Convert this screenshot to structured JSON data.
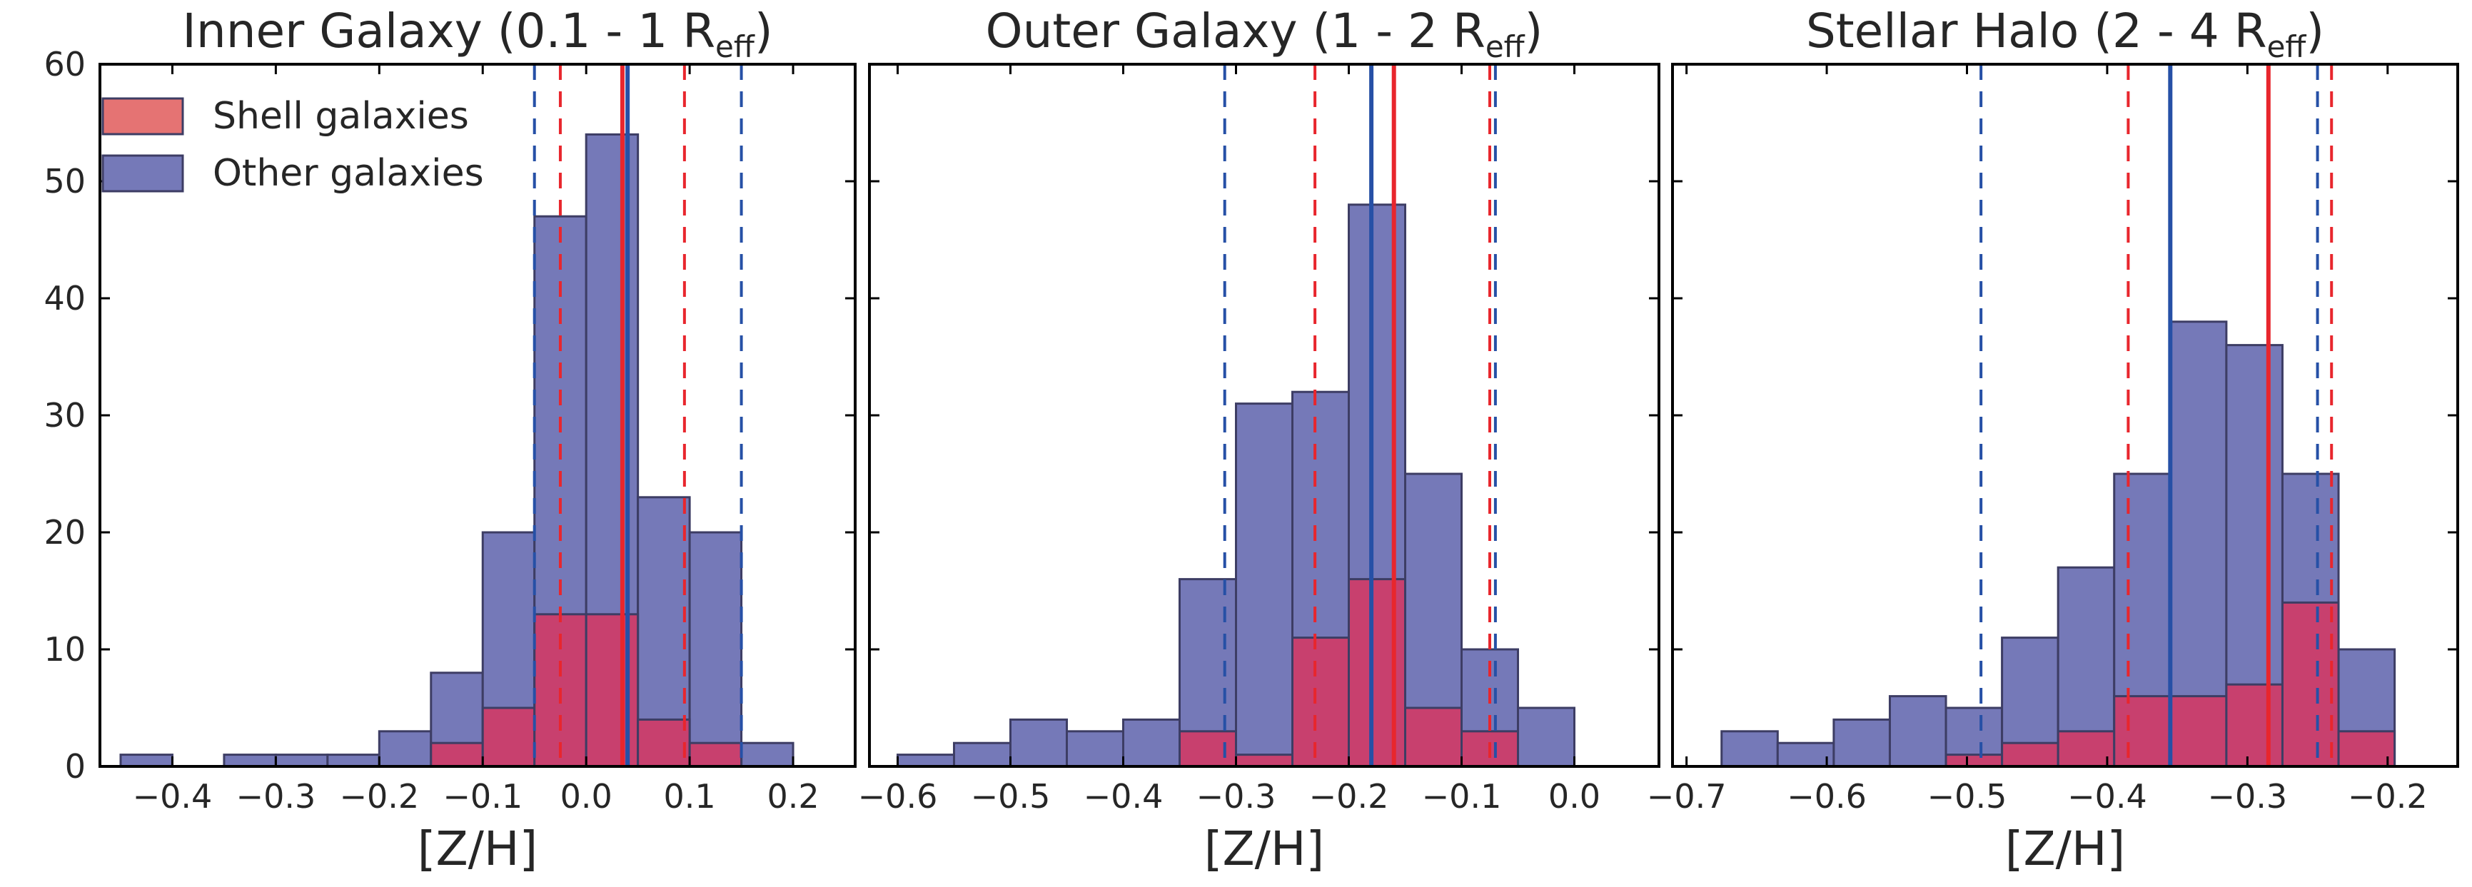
{
  "chart_data": [
    {
      "type": "histogram",
      "title_main": "Inner Galaxy (0.1 - 1 R",
      "title_sub": "eff",
      "title_end": ")",
      "xlabel": "[Z/H]",
      "ylabel": "",
      "xlim": [
        -0.47,
        0.26
      ],
      "ylim": [
        0,
        60
      ],
      "xticks": [
        -0.4,
        -0.3,
        -0.2,
        -0.1,
        0.0,
        0.1,
        0.2
      ],
      "xtick_labels": [
        "−0.4",
        "−0.3",
        "−0.2",
        "−0.1",
        "0.0",
        "0.1",
        "0.2"
      ],
      "yticks": [
        0,
        10,
        20,
        30,
        40,
        50,
        60
      ],
      "ytick_labels": [
        "0",
        "10",
        "20",
        "30",
        "40",
        "50",
        "60"
      ],
      "bin_edges": [
        -0.45,
        -0.4,
        -0.35,
        -0.3,
        -0.25,
        -0.2,
        -0.15,
        -0.1,
        -0.05,
        0.0,
        0.05,
        0.1,
        0.15,
        0.2,
        0.25
      ],
      "series": [
        {
          "name": "Other galaxies",
          "counts": [
            1,
            0,
            1,
            1,
            1,
            3,
            8,
            20,
            47,
            54,
            23,
            20,
            2,
            0
          ]
        },
        {
          "name": "Shell galaxies",
          "counts": [
            0,
            0,
            0,
            0,
            0,
            0,
            2,
            5,
            13,
            13,
            4,
            2,
            0,
            0
          ]
        }
      ],
      "lines": {
        "other": {
          "median": 0.04,
          "low": -0.05,
          "high": 0.15
        },
        "shell": {
          "median": 0.035,
          "low": -0.025,
          "high": 0.095
        }
      }
    },
    {
      "type": "histogram",
      "title_main": "Outer Galaxy (1 - 2 R",
      "title_sub": "eff",
      "title_end": ")",
      "xlabel": "[Z/H]",
      "ylabel": "",
      "xlim": [
        -0.625,
        0.075
      ],
      "ylim": [
        0,
        60
      ],
      "xticks": [
        -0.6,
        -0.5,
        -0.4,
        -0.3,
        -0.2,
        -0.1,
        0.0
      ],
      "xtick_labels": [
        "−0.6",
        "−0.5",
        "−0.4",
        "−0.3",
        "−0.2",
        "−0.1",
        "0.0"
      ],
      "yticks": [
        0,
        10,
        20,
        30,
        40,
        50,
        60
      ],
      "ytick_labels": [
        "",
        "",
        "",
        "",
        "",
        "",
        ""
      ],
      "bin_edges": [
        -0.6,
        -0.55,
        -0.5,
        -0.45,
        -0.4,
        -0.35,
        -0.3,
        -0.25,
        -0.2,
        -0.15,
        -0.1,
        -0.05,
        0.0,
        0.05
      ],
      "series": [
        {
          "name": "Other galaxies",
          "counts": [
            1,
            2,
            4,
            3,
            4,
            16,
            31,
            32,
            48,
            25,
            10,
            5,
            0
          ]
        },
        {
          "name": "Shell galaxies",
          "counts": [
            0,
            0,
            0,
            0,
            0,
            3,
            1,
            11,
            16,
            5,
            3,
            0,
            0
          ]
        }
      ],
      "lines": {
        "other": {
          "median": -0.18,
          "low": -0.31,
          "high": -0.07
        },
        "shell": {
          "median": -0.16,
          "low": -0.23,
          "high": -0.075
        }
      }
    },
    {
      "type": "histogram",
      "title_main": "Stellar Halo (2 - 4 R",
      "title_sub": "eff",
      "title_end": ")",
      "xlabel": "[Z/H]",
      "ylabel": "",
      "xlim": [
        -0.71,
        -0.15
      ],
      "ylim": [
        0,
        60
      ],
      "xticks": [
        -0.7,
        -0.6,
        -0.5,
        -0.4,
        -0.3,
        -0.2
      ],
      "xtick_labels": [
        "−0.7",
        "−0.6",
        "−0.5",
        "−0.4",
        "−0.3",
        "−0.2"
      ],
      "yticks": [
        0,
        10,
        20,
        30,
        40,
        50,
        60
      ],
      "ytick_labels": [
        "",
        "",
        "",
        "",
        "",
        "",
        ""
      ],
      "bin_edges": [
        -0.675,
        -0.635,
        -0.595,
        -0.555,
        -0.515,
        -0.475,
        -0.435,
        -0.395,
        -0.355,
        -0.315,
        -0.275,
        -0.235,
        -0.195
      ],
      "series": [
        {
          "name": "Other galaxies",
          "counts": [
            3,
            2,
            4,
            6,
            5,
            11,
            17,
            25,
            38,
            36,
            25,
            10
          ]
        },
        {
          "name": "Shell galaxies",
          "counts": [
            0,
            0,
            0,
            0,
            1,
            2,
            3,
            6,
            6,
            7,
            14,
            3
          ]
        }
      ],
      "lines": {
        "other": {
          "median": -0.355,
          "low": -0.49,
          "high": -0.25
        },
        "shell": {
          "median": -0.285,
          "low": -0.385,
          "high": -0.24
        }
      }
    }
  ],
  "legend": {
    "items": [
      {
        "label": "Shell galaxies",
        "color": "#e57373"
      },
      {
        "label": "Other galaxies",
        "color": "#7579b8"
      }
    ]
  },
  "colors": {
    "other_fill": "#7579b8",
    "shell_fill": "#c8406e",
    "edge": "#3d3d64",
    "other_line": "#2650a6",
    "shell_line": "#e8262d"
  }
}
